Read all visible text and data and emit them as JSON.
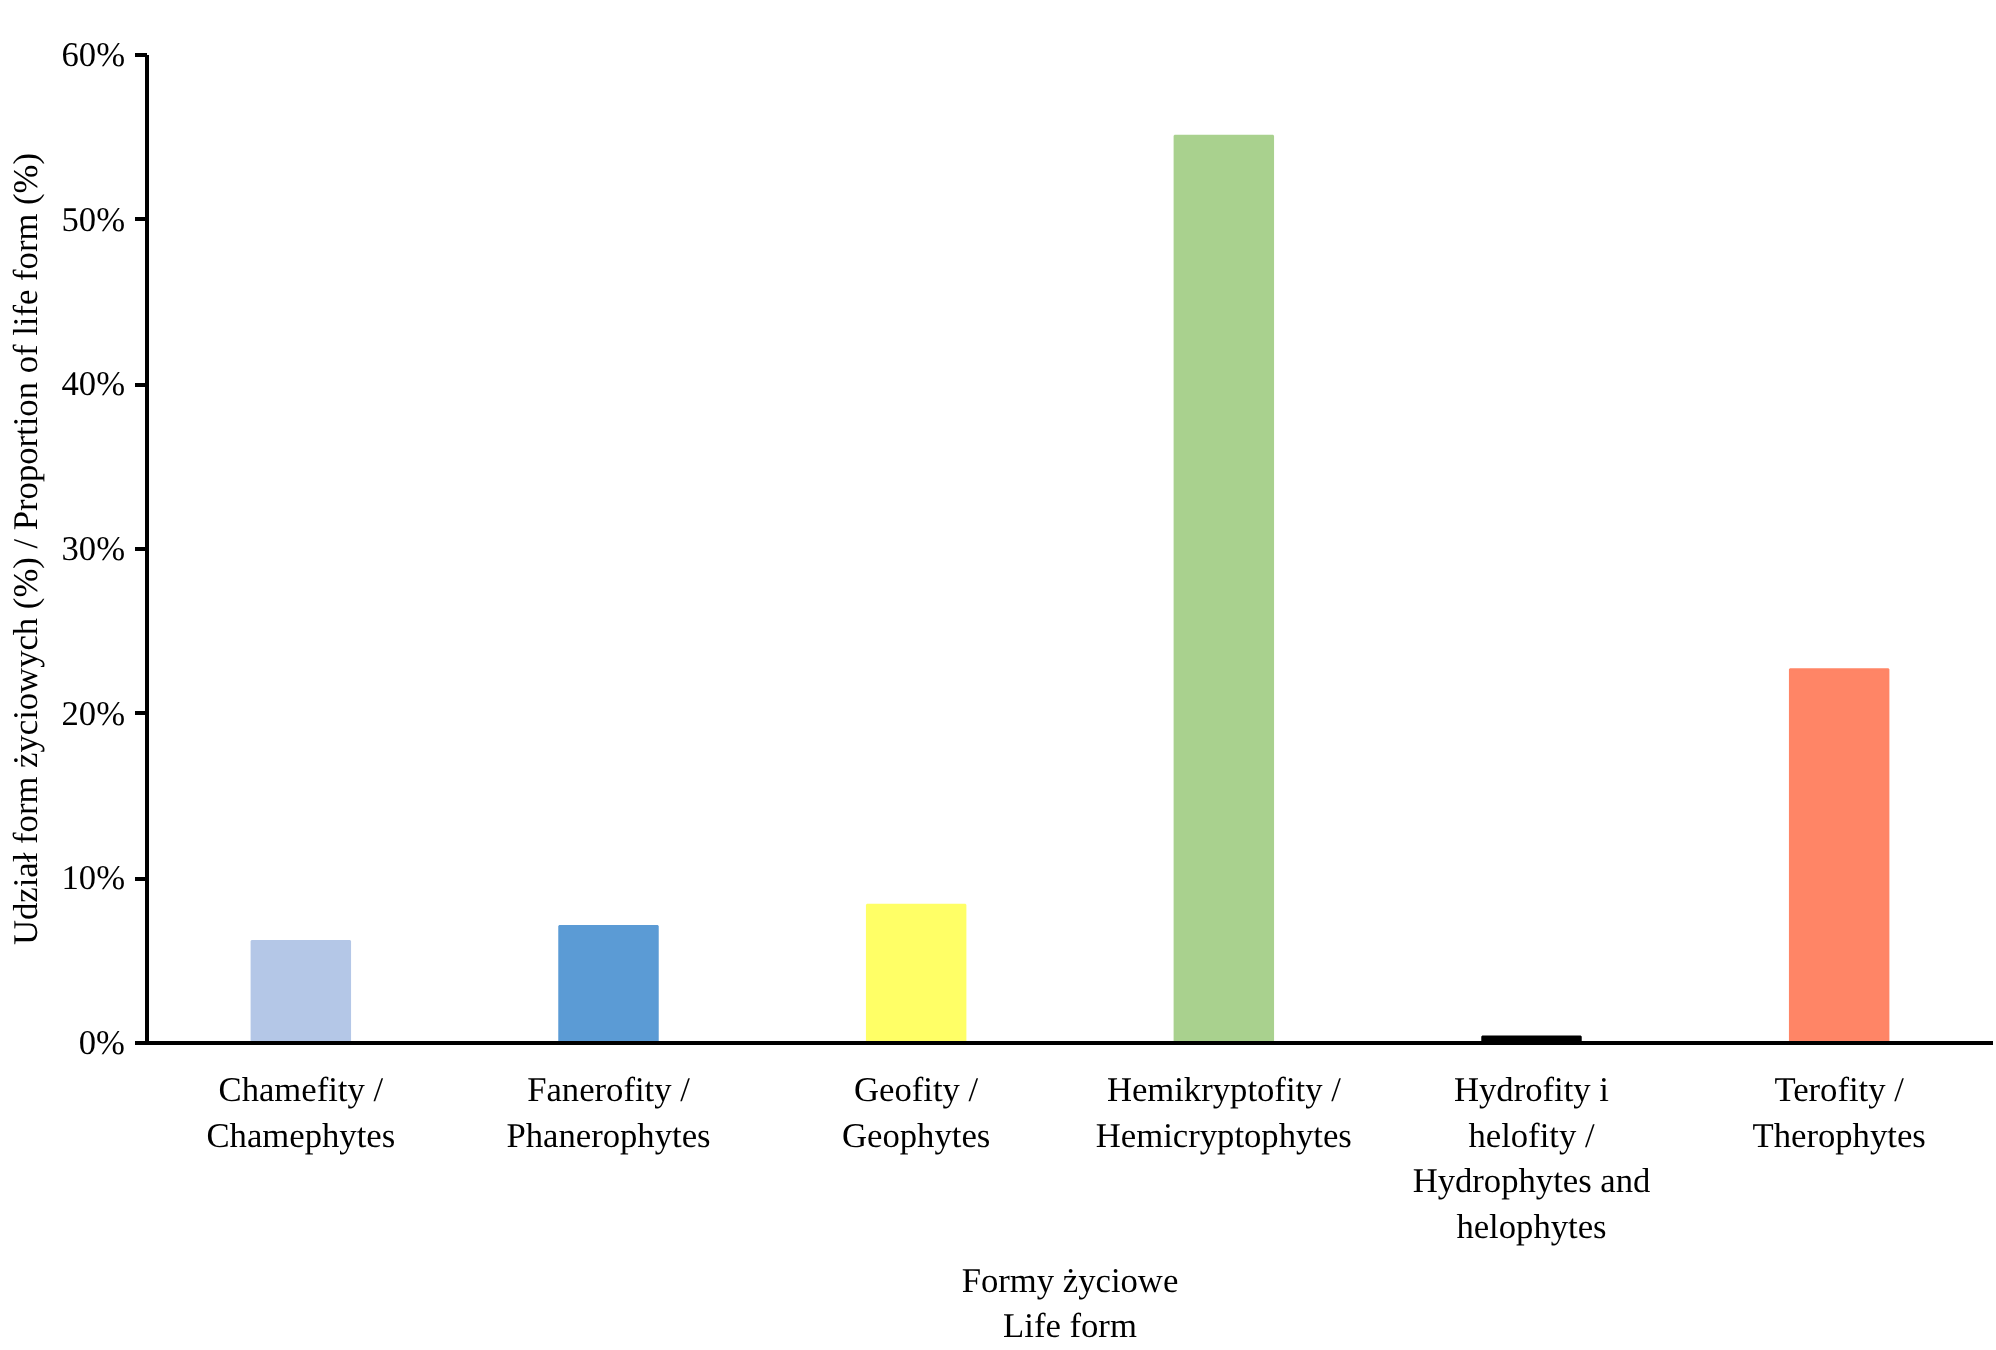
{
  "chart_data": {
    "type": "bar",
    "xlabel": "Formy życiowe\nLife form",
    "ylabel": "Udział form życiowych (%) / Proportion of life form (%)",
    "categories": [
      "Chamefity / Chamephytes",
      "Fanerofity / Phanerophytes",
      "Geofity / Geophytes",
      "Hemikryptofity / Hemicryptophytes",
      "Hydrofity i helofity / Hydrophytes and helophytes",
      "Terofity / Therophytes"
    ],
    "values": [
      6.2,
      7.1,
      8.4,
      55.1,
      0.4,
      22.7
    ],
    "colors": [
      "#b4c7e7",
      "#5b9bd5",
      "#ffff66",
      "#a9d18e",
      "#000000",
      "#ff8566"
    ],
    "ylim": [
      0,
      60
    ],
    "yticks": [
      {
        "value": 0,
        "label": "0%"
      },
      {
        "value": 10,
        "label": "10%"
      },
      {
        "value": 20,
        "label": "20%"
      },
      {
        "value": 30,
        "label": "30%"
      },
      {
        "value": 40,
        "label": "40%"
      },
      {
        "value": 50,
        "label": "50%"
      },
      {
        "value": 60,
        "label": "60%"
      }
    ],
    "grid": false
  }
}
